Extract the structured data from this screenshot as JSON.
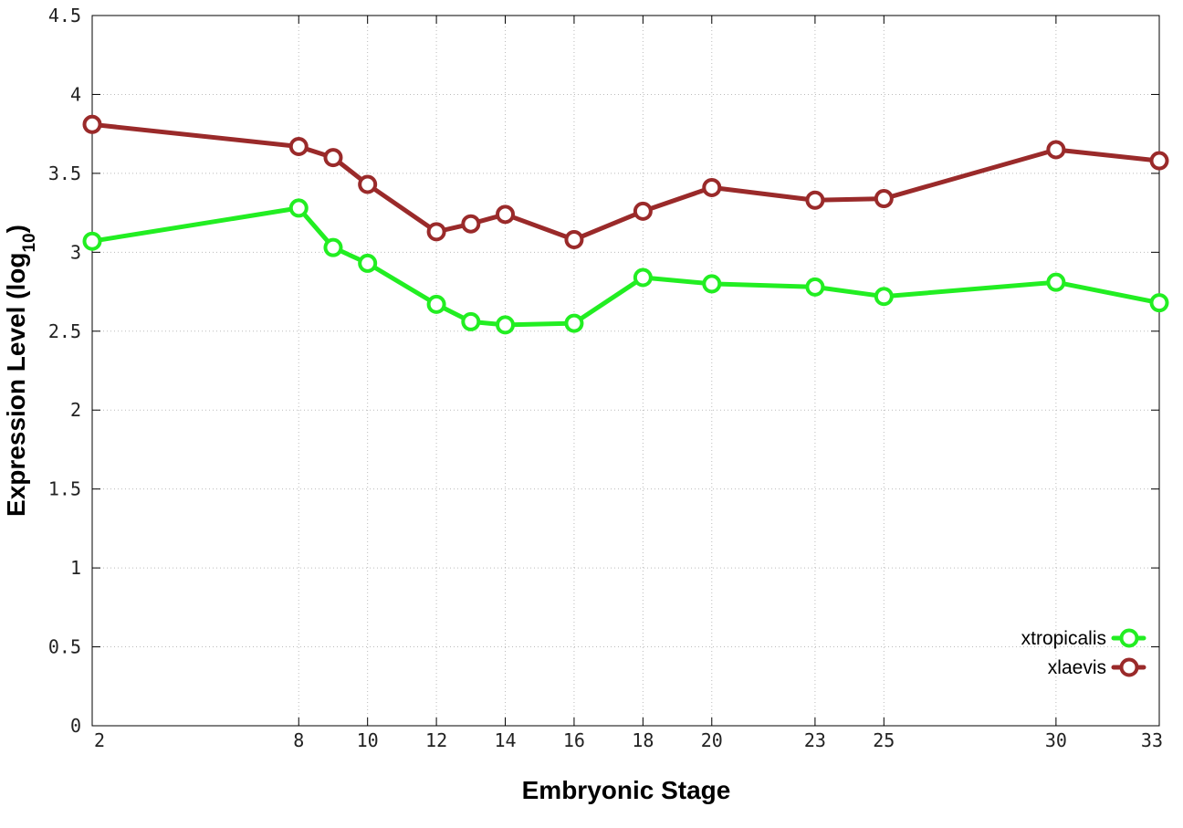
{
  "chart_data": {
    "type": "line",
    "xlabel": "Embryonic Stage",
    "ylabel": {
      "main": "Expression Level (log",
      "subscript": "10",
      "close": ")"
    },
    "x": [
      2,
      8,
      9,
      10,
      12,
      13,
      14,
      16,
      18,
      20,
      23,
      25,
      30,
      33
    ],
    "xticks": [
      2,
      8,
      10,
      12,
      14,
      16,
      18,
      20,
      23,
      25,
      30,
      33
    ],
    "xtick_labels": [
      "2",
      "8",
      "10",
      "12",
      "14",
      "16",
      "18",
      "20",
      "23",
      "25",
      "30",
      "33"
    ],
    "xlim": [
      2,
      33
    ],
    "yticks": [
      0,
      0.5,
      1,
      1.5,
      2,
      2.5,
      3,
      3.5,
      4,
      4.5
    ],
    "ytick_labels": [
      "0",
      "0.5",
      "1",
      "1.5",
      "2",
      "2.5",
      "3",
      "3.5",
      "4",
      "4.5"
    ],
    "ylim": [
      0,
      4.5
    ],
    "grid": true,
    "legend_position": "bottom-right",
    "series": [
      {
        "name": "xtropicalis",
        "color": "#22ee22",
        "values": [
          3.07,
          3.28,
          3.03,
          2.93,
          2.67,
          2.56,
          2.54,
          2.55,
          2.84,
          2.8,
          2.78,
          2.72,
          2.81,
          2.68
        ]
      },
      {
        "name": "xlaevis",
        "color": "#9a2a2a",
        "values": [
          3.81,
          3.67,
          3.6,
          3.43,
          3.13,
          3.18,
          3.24,
          3.08,
          3.26,
          3.41,
          3.33,
          3.34,
          3.65,
          3.58
        ]
      }
    ]
  }
}
